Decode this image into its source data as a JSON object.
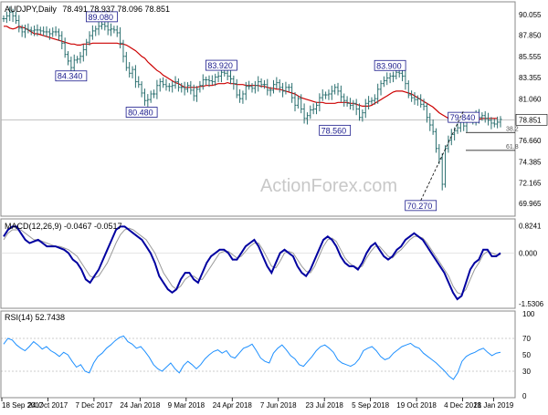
{
  "chart_data": [
    {
      "type": "candlestick",
      "symbol_label": "AUDJPY,Daily",
      "ohlc_label": "78.491 78.937 78.096 78.851",
      "current_price_label": "78.851",
      "watermark": "ActionForex.com",
      "ylim": [
        68.8,
        91.2
      ],
      "y_ticks": [
        "90.055",
        "87.850",
        "85.555",
        "83.355",
        "81.060",
        "78.851",
        "76.660",
        "74.385",
        "72.165",
        "69.965"
      ],
      "x_ticks": [
        "18 Sep 2017",
        "24 Oct 2017",
        "7 Dec 2017",
        "24 Jan 2018",
        "9 Mar 2018",
        "24 Apr 2018",
        "7 Jun 2018",
        "23 Jul 2018",
        "5 Sep 2018",
        "19 Oct 2018",
        "4 Dec 2018",
        "21 Jan 2019"
      ],
      "close_series": [
        89.6,
        89.9,
        90.3,
        89.9,
        89.4,
        88.6,
        88.2,
        88.5,
        88.4,
        88.3,
        88.4,
        88.4,
        88.3,
        88.2,
        88.2,
        88.0,
        88.2,
        88.2,
        87.8,
        87.0,
        85.8,
        85.1,
        84.4,
        85.2,
        85.3,
        85.6,
        86.3,
        87.1,
        87.8,
        88.3,
        88.5,
        88.8,
        89.0,
        88.8,
        88.4,
        88.5,
        88.4,
        88.1,
        87.0,
        85.6,
        84.4,
        83.8,
        84.2,
        82.9,
        82.6,
        81.7,
        80.9,
        81.0,
        81.6,
        81.6,
        82.5,
        82.9,
        82.6,
        82.4,
        82.4,
        82.5,
        82.9,
        82.3,
        82.3,
        82.1,
        82.5,
        82.0,
        81.4,
        82.1,
        82.5,
        83.1,
        83.1,
        83.0,
        82.9,
        83.4,
        83.5,
        83.9,
        83.8,
        83.5,
        83.2,
        82.7,
        81.5,
        81.1,
        81.6,
        82.4,
        82.4,
        82.2,
        82.5,
        82.9,
        82.6,
        82.6,
        82.0,
        82.0,
        82.6,
        82.8,
        82.3,
        81.9,
        82.3,
        82.3,
        81.2,
        80.4,
        81.1,
        80.0,
        79.0,
        79.3,
        79.9,
        80.0,
        80.4,
        81.2,
        81.5,
        81.5,
        81.6,
        81.9,
        82.3,
        81.9,
        81.3,
        80.9,
        80.6,
        80.4,
        80.6,
        80.0,
        79.1,
        79.6,
        80.6,
        80.8,
        80.9,
        81.1,
        82.1,
        82.7,
        83.0,
        83.3,
        83.5,
        83.5,
        83.9,
        83.8,
        83.5,
        82.7,
        81.5,
        81.2,
        81.0,
        81.1,
        80.5,
        80.3,
        79.1,
        78.3,
        77.6,
        75.8,
        74.7,
        72.0,
        75.8,
        76.7,
        77.3,
        77.7,
        78.0,
        78.6,
        78.2,
        78.9,
        79.0,
        78.8,
        79.4,
        79.1,
        79.3,
        79.0,
        78.8,
        78.5,
        78.4,
        78.6,
        78.9
      ],
      "ma_series": [
        88.8,
        88.8,
        88.6,
        88.5,
        88.6,
        88.8,
        88.7,
        88.6,
        88.4,
        88.2,
        88.0,
        88.0,
        87.9,
        87.8,
        87.7,
        87.6,
        87.5,
        87.4,
        87.3,
        87.2,
        87.1,
        87.0,
        86.9,
        86.9,
        86.8,
        86.8,
        86.9,
        86.9,
        86.9,
        87.0,
        87.0,
        87.0,
        87.0,
        87.0,
        87.0,
        87.0,
        87.0,
        87.0,
        86.9,
        86.9,
        86.8,
        86.6,
        86.4,
        86.2,
        85.9,
        85.6,
        85.4,
        85.0,
        84.7,
        84.4,
        84.1,
        83.9,
        83.6,
        83.4,
        83.2,
        83.0,
        82.8,
        82.7,
        82.5,
        82.3,
        82.3,
        82.3,
        82.3,
        82.3,
        82.4,
        82.4,
        82.5,
        82.5,
        82.5,
        82.6,
        82.7,
        82.7,
        82.7,
        82.8,
        82.7,
        82.7,
        82.6,
        82.6,
        82.6,
        82.5,
        82.5,
        82.5,
        82.5,
        82.5,
        82.4,
        82.4,
        82.3,
        82.2,
        82.2,
        82.1,
        82.1,
        82.0,
        81.9,
        81.8,
        81.7,
        81.6,
        81.4,
        81.2,
        81.1,
        81.0,
        80.9,
        80.8,
        80.7,
        80.7,
        80.7,
        80.6,
        80.6,
        80.6,
        80.6,
        80.7,
        80.7,
        80.7,
        80.7,
        80.6,
        80.6,
        80.5,
        80.4,
        80.3,
        80.3,
        80.3,
        80.4,
        80.6,
        80.8,
        81.0,
        81.2,
        81.4,
        81.6,
        81.8,
        81.9,
        81.9,
        81.9,
        81.8,
        81.7,
        81.6,
        81.4,
        81.2,
        81.0,
        80.8,
        80.6,
        80.4,
        80.2,
        79.9,
        79.6,
        79.4,
        79.2,
        79.0,
        78.8,
        78.7,
        78.6,
        78.6,
        78.6,
        78.6,
        78.6,
        78.7,
        78.8,
        78.9,
        79.0,
        79.0,
        79.0,
        79.0,
        79.0,
        79.0
      ],
      "annotations": [
        {
          "label": "89.080",
          "x_index": 32,
          "value": 89.08
        },
        {
          "label": "84.340",
          "x_index": 22,
          "value": 84.34
        },
        {
          "label": "80.480",
          "x_index": 45,
          "value": 80.48
        },
        {
          "label": "83.920",
          "x_index": 71,
          "value": 83.92
        },
        {
          "label": "78.560",
          "x_index": 108,
          "value": 78.56
        },
        {
          "label": "83.900",
          "x_index": 126,
          "value": 83.9
        },
        {
          "label": "79.840",
          "x_index": 150,
          "value": 79.84
        },
        {
          "label": "70.270",
          "x_index": 136,
          "value": 70.27
        }
      ],
      "fib_levels": [
        {
          "label": "38.2",
          "value": 77.5
        },
        {
          "label": "61.8",
          "value": 75.6
        }
      ]
    },
    {
      "type": "line",
      "title": "MACD(12,26,9) -0.0467 -0.0517",
      "ylim": [
        -1.62,
        0.95
      ],
      "y_ticks": [
        "0.8241",
        "0.000",
        "-1.5306"
      ],
      "series": [
        {
          "values": [
            0.5,
            0.7,
            0.8,
            0.8,
            0.6,
            0.4,
            0.3,
            0.35,
            0.4,
            0.3,
            0.2,
            0.2,
            0.2,
            0.15,
            0.1,
            0.0,
            -0.2,
            -0.3,
            -0.5,
            -0.8,
            -0.9,
            -0.7,
            -0.5,
            -0.2,
            0.1,
            0.4,
            0.7,
            0.8,
            0.8,
            0.7,
            0.6,
            0.5,
            0.4,
            0.2,
            0.0,
            -0.3,
            -0.7,
            -0.9,
            -1.1,
            -1.2,
            -1.1,
            -0.8,
            -0.6,
            -0.6,
            -0.8,
            -0.9,
            -0.6,
            -0.3,
            -0.1,
            0.0,
            0.1,
            0.1,
            0.0,
            -0.2,
            -0.2,
            0.0,
            0.2,
            0.3,
            0.4,
            0.2,
            -0.1,
            -0.4,
            -0.6,
            -0.3,
            0.0,
            0.1,
            0.0,
            -0.1,
            -0.4,
            -0.6,
            -0.7,
            -0.5,
            -0.2,
            0.1,
            0.4,
            0.5,
            0.4,
            0.2,
            -0.1,
            -0.3,
            -0.4,
            -0.4,
            -0.5,
            -0.3,
            0.0,
            0.2,
            0.3,
            0.1,
            -0.1,
            -0.2,
            -0.1,
            0.1,
            0.2,
            0.4,
            0.5,
            0.6,
            0.5,
            0.4,
            0.2,
            0.0,
            -0.2,
            -0.4,
            -0.6,
            -0.9,
            -1.2,
            -1.4,
            -1.3,
            -0.9,
            -0.5,
            -0.3,
            -0.2,
            0.1,
            0.1,
            -0.1,
            -0.1,
            0.0
          ]
        },
        {
          "values": [
            0.4,
            0.6,
            0.7,
            0.7,
            0.7,
            0.6,
            0.5,
            0.4,
            0.4,
            0.35,
            0.3,
            0.25,
            0.2,
            0.2,
            0.15,
            0.1,
            0.0,
            -0.1,
            -0.3,
            -0.5,
            -0.7,
            -0.75,
            -0.7,
            -0.5,
            -0.3,
            0.0,
            0.3,
            0.55,
            0.7,
            0.75,
            0.7,
            0.6,
            0.5,
            0.4,
            0.2,
            0.0,
            -0.3,
            -0.6,
            -0.8,
            -1.0,
            -1.1,
            -1.0,
            -0.8,
            -0.7,
            -0.7,
            -0.8,
            -0.8,
            -0.6,
            -0.4,
            -0.2,
            0.0,
            0.05,
            0.05,
            -0.05,
            -0.15,
            -0.1,
            0.05,
            0.2,
            0.3,
            0.3,
            0.1,
            -0.15,
            -0.4,
            -0.45,
            -0.25,
            0.0,
            0.05,
            0.0,
            -0.2,
            -0.4,
            -0.55,
            -0.6,
            -0.4,
            -0.1,
            0.2,
            0.4,
            0.45,
            0.35,
            0.1,
            -0.15,
            -0.3,
            -0.4,
            -0.45,
            -0.4,
            -0.15,
            0.05,
            0.2,
            0.2,
            0.05,
            -0.1,
            -0.15,
            0.0,
            0.1,
            0.25,
            0.4,
            0.5,
            0.5,
            0.45,
            0.3,
            0.1,
            -0.1,
            -0.3,
            -0.5,
            -0.7,
            -1.0,
            -1.2,
            -1.25,
            -1.1,
            -0.8,
            -0.5,
            -0.3,
            -0.05,
            0.05,
            0.0,
            -0.05,
            -0.05
          ]
        }
      ]
    },
    {
      "type": "line",
      "title": "RSI(14) 52.7438",
      "ylim": [
        0,
        100
      ],
      "y_ticks": [
        "100",
        "70",
        "50",
        "30",
        "0"
      ],
      "series": [
        {
          "values": [
            63,
            70,
            68,
            62,
            58,
            55,
            60,
            66,
            62,
            57,
            60,
            55,
            52,
            48,
            53,
            50,
            42,
            35,
            38,
            30,
            28,
            40,
            48,
            52,
            58,
            62,
            67,
            71,
            73,
            66,
            63,
            58,
            60,
            54,
            47,
            38,
            33,
            30,
            35,
            40,
            33,
            28,
            37,
            42,
            38,
            33,
            38,
            45,
            50,
            54,
            56,
            52,
            55,
            48,
            46,
            52,
            58,
            60,
            63,
            55,
            46,
            42,
            40,
            52,
            58,
            62,
            56,
            49,
            45,
            38,
            36,
            42,
            48,
            55,
            60,
            62,
            58,
            53,
            44,
            40,
            38,
            36,
            39,
            45,
            55,
            58,
            60,
            55,
            48,
            44,
            46,
            52,
            56,
            60,
            62,
            64,
            60,
            58,
            52,
            48,
            44,
            40,
            35,
            30,
            24,
            20,
            28,
            42,
            48,
            51,
            53,
            56,
            58,
            53,
            49,
            52,
            53
          ]
        }
      ]
    }
  ],
  "colors": {
    "candle": "#2a6f6f",
    "ma": "#cc0000",
    "annotation": "#1a1a8c",
    "macd_main": "#0000a0",
    "macd_signal": "#999999",
    "rsi": "#1e90ff",
    "axis_text": "#000000",
    "watermark": "#c8c8c8"
  }
}
